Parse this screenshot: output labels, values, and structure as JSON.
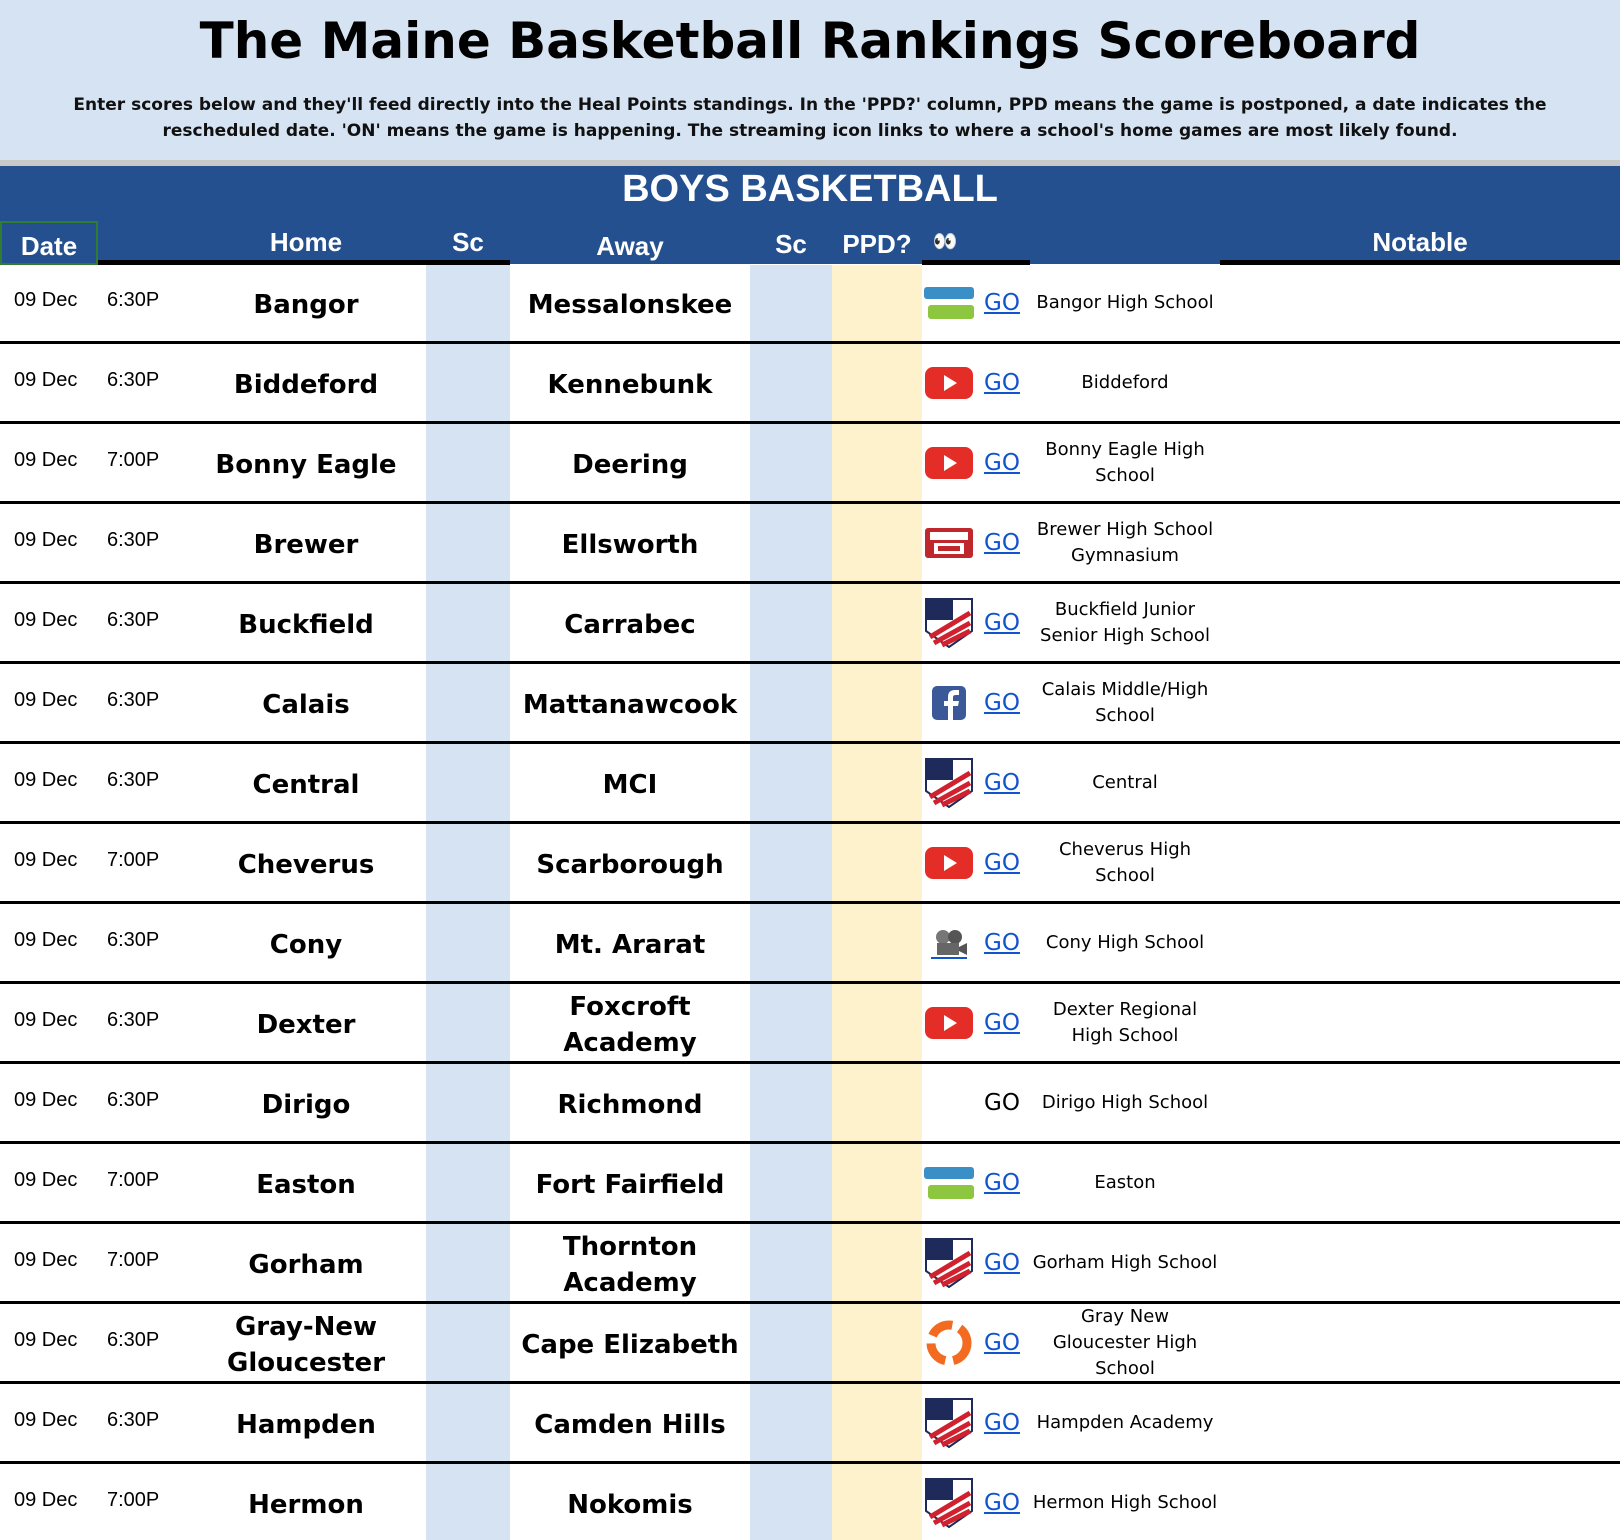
{
  "header": {
    "title": "The Maine Basketball Rankings Scoreboard",
    "description": "Enter scores below and they'll feed directly into the Heal Points standings. In the 'PPD?' column,  PPD means the game is postponed, a date indicates the rescheduled date. 'ON' means the game is happening. The streaming icon links to where a school's home games are most likely found."
  },
  "section": {
    "title": "BOYS BASKETBALL",
    "columns": {
      "date": "Date",
      "home": "Home",
      "score_home": "Sc",
      "away": "Away",
      "score_away": "Sc",
      "ppd": "PPD?",
      "watch": "👀",
      "notable": "Notable"
    }
  },
  "games": [
    {
      "date": "09 Dec",
      "time": "6:30P",
      "home": "Bangor",
      "away": "Messalonskee",
      "stream": "GO",
      "notable": "Bangor High School"
    },
    {
      "date": "09 Dec",
      "time": "6:30P",
      "home": "Biddeford",
      "away": "Kennebunk",
      "stream": "GO",
      "notable": "Biddeford"
    },
    {
      "date": "09 Dec",
      "time": "7:00P",
      "home": "Bonny Eagle",
      "away": "Deering",
      "stream": "GO",
      "notable": "Bonny Eagle High School"
    },
    {
      "date": "09 Dec",
      "time": "6:30P",
      "home": "Brewer",
      "away": "Ellsworth",
      "stream": "GO",
      "notable": "Brewer High School Gymnasium"
    },
    {
      "date": "09 Dec",
      "time": "6:30P",
      "home": "Buckfield",
      "away": "Carrabec",
      "stream": "GO",
      "notable": "Buckfield Junior Senior High School"
    },
    {
      "date": "09 Dec",
      "time": "6:30P",
      "home": "Calais",
      "away": "Mattanawcook",
      "stream": "GO",
      "notable": "Calais Middle/High School"
    },
    {
      "date": "09 Dec",
      "time": "6:30P",
      "home": "Central",
      "away": "MCI",
      "stream": "GO",
      "notable": "Central"
    },
    {
      "date": "09 Dec",
      "time": "7:00P",
      "home": "Cheverus",
      "away": "Scarborough",
      "stream": "GO",
      "notable": "Cheverus High School"
    },
    {
      "date": "09 Dec",
      "time": "6:30P",
      "home": "Cony",
      "away": "Mt. Ararat",
      "stream": "GO",
      "notable": "Cony High School"
    },
    {
      "date": "09 Dec",
      "time": "6:30P",
      "home": "Dexter",
      "away": "Foxcroft Academy",
      "stream": "GO",
      "notable": "Dexter Regional High School"
    },
    {
      "date": "09 Dec",
      "time": "6:30P",
      "home": "Dirigo",
      "away": "Richmond",
      "stream": "GO",
      "notable": "Dirigo High School"
    },
    {
      "date": "09 Dec",
      "time": "7:00P",
      "home": "Easton",
      "away": "Fort Fairfield",
      "stream": "GO",
      "notable": "Easton"
    },
    {
      "date": "09 Dec",
      "time": "7:00P",
      "home": "Gorham",
      "away": "Thornton Academy",
      "stream": "GO",
      "notable": "Gorham High School"
    },
    {
      "date": "09 Dec",
      "time": "6:30P",
      "home": "Gray-New Gloucester",
      "away": "Cape Elizabeth",
      "stream": "GO",
      "notable": "Gray New Gloucester High School"
    },
    {
      "date": "09 Dec",
      "time": "6:30P",
      "home": "Hampden",
      "away": "Camden Hills",
      "stream": "GO",
      "notable": "Hampden Academy"
    },
    {
      "date": "09 Dec",
      "time": "7:00P",
      "home": "Hermon",
      "away": "Nokomis",
      "stream": "GO",
      "notable": "Hermon High School"
    }
  ]
}
